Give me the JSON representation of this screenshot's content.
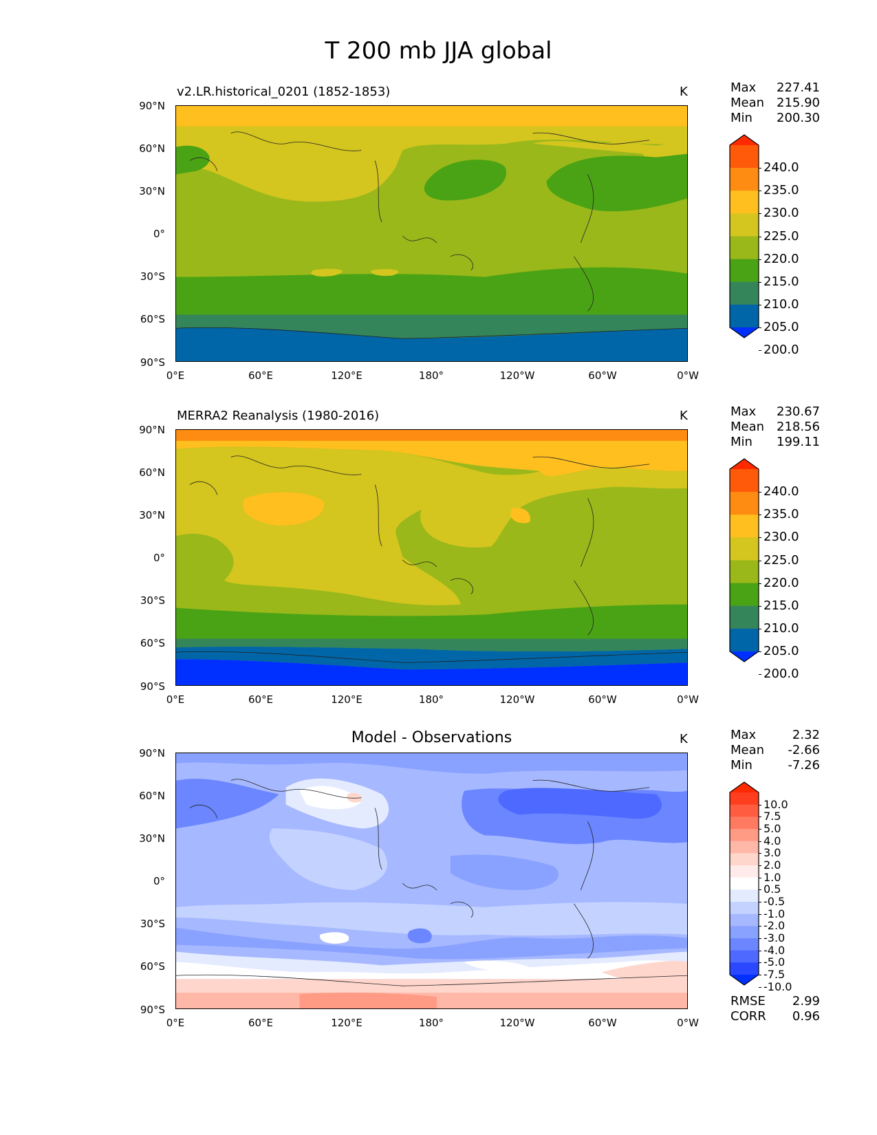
{
  "figure": {
    "title": "T 200 mb JJA global"
  },
  "axes": {
    "yticks": [
      "90°N",
      "60°N",
      "30°N",
      "0°",
      "30°S",
      "60°S",
      "90°S"
    ],
    "xticks": [
      "0°E",
      "60°E",
      "120°E",
      "180°",
      "120°W",
      "60°W",
      "0°W"
    ]
  },
  "panels": [
    {
      "label": "v2.LR.historical_0201 (1852-1853)",
      "units": "K",
      "stats": {
        "max_label": "Max",
        "max": "227.41",
        "mean_label": "Mean",
        "mean": "215.90",
        "min_label": "Min",
        "min": "200.30"
      },
      "colorbar": {
        "labels": [
          "240.0",
          "235.0",
          "230.0",
          "225.0",
          "220.0",
          "215.0",
          "210.0",
          "205.0",
          "200.0"
        ],
        "colors": [
          "#ff2a00",
          "#ff5a0a",
          "#ff8c12",
          "#ffbf1f",
          "#d4c51f",
          "#9ab81a",
          "#4aa314",
          "#35855a",
          "#0066a8",
          "#0030ff"
        ]
      }
    },
    {
      "label": "MERRA2 Reanalysis (1980-2016)",
      "units": "K",
      "stats": {
        "max_label": "Max",
        "max": "230.67",
        "mean_label": "Mean",
        "mean": "218.56",
        "min_label": "Min",
        "min": "199.11"
      },
      "colorbar": {
        "labels": [
          "240.0",
          "235.0",
          "230.0",
          "225.0",
          "220.0",
          "215.0",
          "210.0",
          "205.0",
          "200.0"
        ],
        "colors": [
          "#ff2a00",
          "#ff5a0a",
          "#ff8c12",
          "#ffbf1f",
          "#d4c51f",
          "#9ab81a",
          "#4aa314",
          "#35855a",
          "#0066a8",
          "#0030ff"
        ]
      }
    },
    {
      "title": "Model - Observations",
      "units": "K",
      "stats": {
        "max_label": "Max",
        "max": "2.32",
        "mean_label": "Mean",
        "mean": "-2.66",
        "min_label": "Min",
        "min": "-7.26"
      },
      "colorbar": {
        "labels": [
          "10.0",
          "7.5",
          "5.0",
          "4.0",
          "3.0",
          "2.0",
          "1.0",
          "0.5",
          "-0.5",
          "-1.0",
          "-2.0",
          "-3.0",
          "-4.0",
          "-5.0",
          "-7.5",
          "-10.0"
        ],
        "colors": [
          "#ff2a00",
          "#ff3d1f",
          "#ff5c40",
          "#ff7a60",
          "#ff9a85",
          "#ffb8a8",
          "#ffd6cc",
          "#ffecea",
          "#ffffff",
          "#e4ebff",
          "#c4d2ff",
          "#a6b8ff",
          "#8aa2ff",
          "#6b86ff",
          "#4d69ff",
          "#2a48ff",
          "#0030ff"
        ]
      },
      "metrics": {
        "rmse_label": "RMSE",
        "rmse": "2.99",
        "corr_label": "CORR",
        "corr": "0.96"
      }
    }
  ]
}
